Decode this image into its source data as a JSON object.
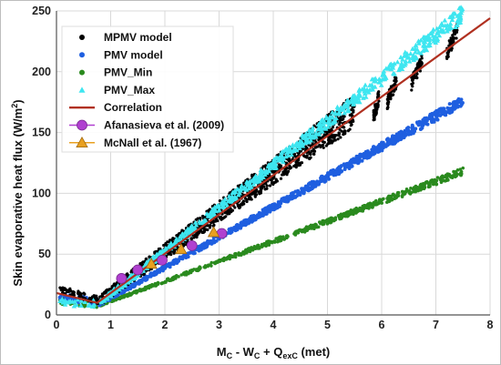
{
  "chart_data": {
    "type": "scatter",
    "xlabel": "M",
    "xlabel_parts": [
      "M",
      "C",
      " - W",
      "C",
      " + Q",
      "exC",
      " (met)"
    ],
    "ylabel": "Skin evaporative heat flux (W/m",
    "ylabel_sup": "2",
    "ylabel_end": ")",
    "xlim": [
      0,
      8
    ],
    "ylim": [
      0,
      250
    ],
    "x_ticks": [
      "0",
      "1",
      "2",
      "3",
      "4",
      "5",
      "6",
      "7",
      "8"
    ],
    "y_ticks": [
      "0",
      "50",
      "100",
      "150",
      "200",
      "250"
    ],
    "grid": true,
    "legend_position": "top-left",
    "colors": {
      "mpmv": "#000000",
      "pmv": "#1f5fe0",
      "pmv_min": "#2a8a1e",
      "pmv_max": "#3ee6f0",
      "correlation": "#b03020",
      "afanasieva": "#b040d0",
      "mcnall": "#e8a020"
    },
    "series": [
      {
        "name": "MPMV model",
        "marker": "dot",
        "color_key": "mpmv",
        "bands": [
          {
            "x0": 0.8,
            "y0": 12,
            "x1": 5.5,
            "y1": 168,
            "spread": 10
          }
        ],
        "clusters": [
          [
            5.85,
            162,
            5.95,
            180
          ],
          [
            6.1,
            175,
            6.3,
            195
          ],
          [
            6.55,
            190,
            6.75,
            210
          ],
          [
            7.2,
            215,
            7.4,
            235
          ]
        ],
        "hook": [
          [
            0.05,
            22
          ],
          [
            0.3,
            18
          ],
          [
            0.6,
            14
          ],
          [
            0.8,
            12
          ]
        ]
      },
      {
        "name": "PMV model",
        "marker": "dot",
        "color_key": "pmv",
        "bands": [
          {
            "x0": 0.8,
            "y0": 9,
            "x1": 7.5,
            "y1": 176,
            "spread": 3
          }
        ],
        "hook": [
          [
            0.05,
            15
          ],
          [
            0.4,
            13
          ],
          [
            0.8,
            10
          ]
        ]
      },
      {
        "name": "PMV_Min",
        "marker": "dot",
        "color_key": "pmv_min",
        "bands": [
          {
            "x0": 0.8,
            "y0": 8,
            "x1": 7.5,
            "y1": 118,
            "spread": 2
          }
        ],
        "hook": [
          [
            0.05,
            12
          ],
          [
            0.4,
            10
          ],
          [
            0.8,
            8
          ]
        ]
      },
      {
        "name": "PMV_Max",
        "marker": "triangle",
        "color_key": "pmv_max",
        "bands": [
          {
            "x0": 0.8,
            "y0": 10,
            "x1": 7.5,
            "y1": 248,
            "spread": 5
          }
        ],
        "hook": [
          [
            0.0,
            10
          ],
          [
            0.8,
            10
          ]
        ]
      },
      {
        "name": "Correlation",
        "marker": "line",
        "color_key": "correlation",
        "x": [
          0,
          0.75,
          8
        ],
        "y": [
          18,
          10,
          244
        ]
      },
      {
        "name": "Afanasieva et al. (2009)",
        "marker": "circle",
        "color_key": "afanasieva",
        "x": [
          1.2,
          1.5,
          1.95,
          2.5,
          3.05
        ],
        "y": [
          30,
          37,
          45,
          57,
          67
        ]
      },
      {
        "name": "McNall et al. (1967)",
        "marker": "triangle",
        "color_key": "mcnall",
        "x": [
          1.75,
          2.3,
          2.9
        ],
        "y": [
          42,
          54,
          68
        ]
      }
    ]
  }
}
